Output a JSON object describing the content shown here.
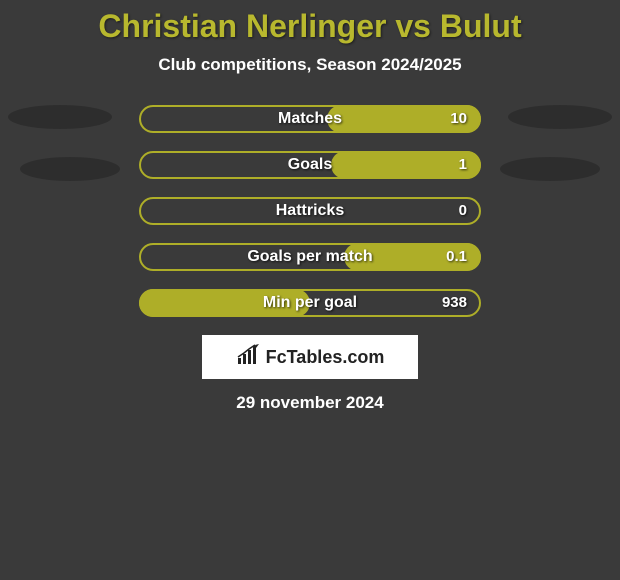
{
  "title": "Christian Nerlinger vs Bulut",
  "subtitle": "Club competitions, Season 2024/2025",
  "date": "29 november 2024",
  "logo_text": "FcTables.com",
  "colors": {
    "background": "#3a3a3a",
    "accent": "#b8b82e",
    "bar_fill": "#aeae28",
    "bar_outline": "#aeae28",
    "text_white": "#ffffff",
    "shadow": "#2a2a2a",
    "logo_bg": "#ffffff",
    "logo_text": "#222222"
  },
  "stats": [
    {
      "label": "Matches",
      "value": "10",
      "fill_side": "right",
      "fill_pct": 45
    },
    {
      "label": "Goals",
      "value": "1",
      "fill_side": "right",
      "fill_pct": 44
    },
    {
      "label": "Hattricks",
      "value": "0",
      "fill_side": "none",
      "fill_pct": 0
    },
    {
      "label": "Goals per match",
      "value": "0.1",
      "fill_side": "right",
      "fill_pct": 40
    },
    {
      "label": "Min per goal",
      "value": "938",
      "fill_side": "left",
      "fill_pct": 50
    }
  ]
}
